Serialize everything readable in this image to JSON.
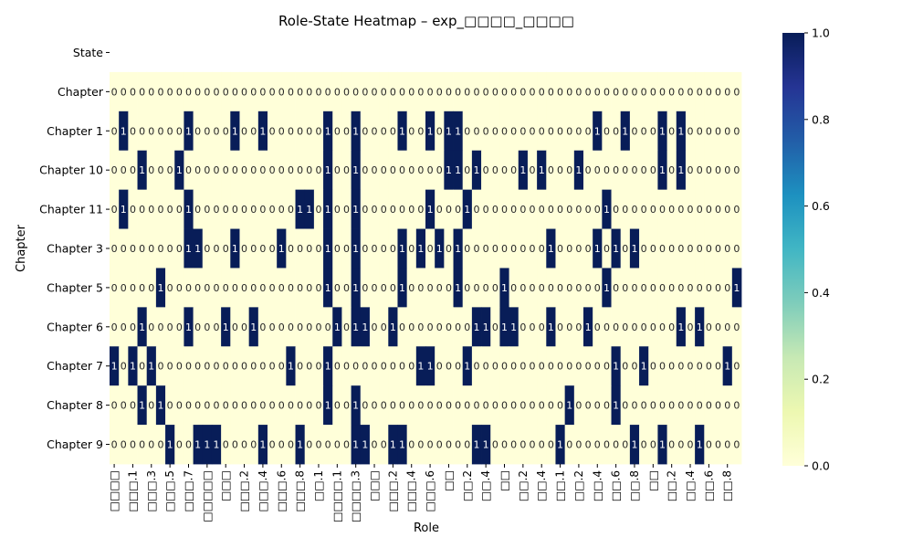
{
  "chart_data": {
    "type": "heatmap",
    "title": "Role-State Heatmap – exp_□□□□_□□□□",
    "xlabel": "Role",
    "ylabel": "Chapter",
    "rows": [
      "State",
      "Chapter",
      "Chapter 1",
      "Chapter 10",
      "Chapter 11",
      "Chapter 3",
      "Chapter 5",
      "Chapter 6",
      "Chapter 7",
      "Chapter 8",
      "Chapter 9"
    ],
    "x_tick_labels": [
      "□□□□",
      "□□□.1",
      "□□□.3",
      "□□□.5",
      "□□□.7",
      "□□□□□",
      "□□□",
      "□□□.2",
      "□□□.4",
      "□□□.6",
      "□□□.8",
      "□□.1",
      "□□□□.1",
      "□□□□.3",
      "□□□",
      "□□□.2",
      "□□□.4",
      "□□□.6",
      "□□",
      "□□.2",
      "□□.4",
      "□□",
      "□□.2",
      "□□.4",
      "□□.1",
      "□□.2",
      "□□.4",
      "□□.6",
      "□□.8",
      "□□",
      "□□.2",
      "□□.4",
      "□□.6",
      "□□.8"
    ],
    "num_columns": 68,
    "values": [
      null,
      "00000000000000000000000000000000000000000000000000000000000000000000",
      "01000000100001001000000100100001001011000000000000001001000101000000",
      "00010001000000000000000100100000000011010000101000100000000101000000",
      "01000000100000000000110100100000001000100000000000000100000000000000",
      "00000000110001000010000100100001010101000000000100001010100000000000",
      "00000100000000000000000100100001000001000010000000000100000000000001",
      "00010000100010010000000010110010000000011011000100010000000001010000",
      "10101000000000000001000100000000011000100000000000000010010000000010",
      "00010100000000000000000100100000000000000000000001000010000000000000",
      "00000010011100001000100000110011000000011000000010000000100100010000"
    ],
    "annotations": true,
    "annotation_format": "integer",
    "colormap": "YlGnBu",
    "cmap_low_color": "#ffffd9",
    "cmap_high_color": "#081d58",
    "colorbar_range": [
      0,
      1
    ],
    "colorbar_ticks": [
      "0.0",
      "0.2",
      "0.4",
      "0.6",
      "0.8",
      "1.0"
    ],
    "grid": false
  }
}
